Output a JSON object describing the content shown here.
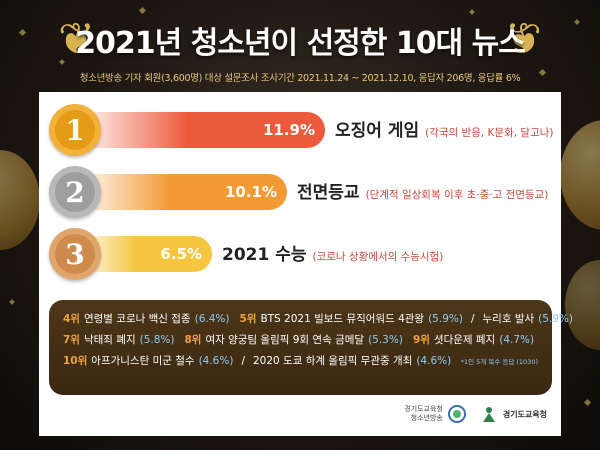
{
  "title": "2021년 청소년이 선정한 10대 뉴스",
  "subtitle": "청소년방송 기자 회원(3,600명) 대상 설문조사 조사기간 2021.11.24 ~ 2021.12.10, 응답자 206명, 응답률 6%",
  "colors": {
    "gold": "#f2b13a",
    "silver": "#b8b8b8",
    "bronze": "#e0a56a",
    "bar1": "#ee5a3c",
    "bar2": "#f49a34",
    "bar3": "#f6c640",
    "highlight": "#f0a23b",
    "percent": "#8ccbf2"
  },
  "chart_data": {
    "type": "bar",
    "categories": [
      "오징어 게임",
      "전면등교",
      "2021 수능"
    ],
    "values": [
      11.9,
      10.1,
      6.5
    ],
    "value_labels": [
      "11.9%",
      "10.1%",
      "6.5%"
    ],
    "ranks": [
      "1",
      "2",
      "3"
    ],
    "descriptions": [
      "(각국의 반응, K문화, 달고나)",
      "(단계적 일상회복 이후 초·중·고 전면등교)",
      "(코로나 상황에서의 수능시험)"
    ]
  },
  "others": [
    {
      "rank": "4위",
      "title": "연령별 코로나 백신 접종",
      "pct": "(6.4%)"
    },
    {
      "rank": "5위",
      "title": "BTS 2021 빌보드 뮤직어워드 4관왕",
      "pct": "(5.9%)"
    },
    {
      "rank": "",
      "title": "누리호 발사",
      "pct": "(5.9%)"
    },
    {
      "rank": "7위",
      "title": "낙태죄 폐지",
      "pct": "(5.8%)"
    },
    {
      "rank": "8위",
      "title": "여자 양궁팀 올림픽 9회 연속 금메달",
      "pct": "(5.3%)"
    },
    {
      "rank": "9위",
      "title": "셧다운제 폐지",
      "pct": "(4.7%)"
    },
    {
      "rank": "10위",
      "title": "아프가니스탄 미군 철수",
      "pct": "(4.6%)"
    },
    {
      "rank": "",
      "title": "2020 도쿄 하계 올림픽 무관중 개최",
      "pct": "(4.6%)"
    }
  ],
  "note": "*1인 5개 복수 응답 (1030)",
  "logos": {
    "left_line1": "경기도교육청",
    "left_line2": "청소년방송",
    "right": "경기도교육청"
  }
}
